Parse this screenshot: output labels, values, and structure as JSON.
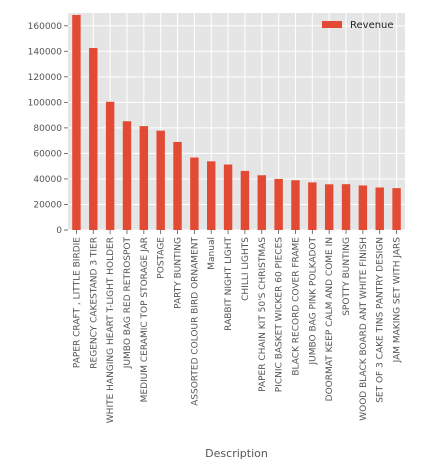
{
  "chart_data": {
    "type": "bar",
    "xlabel": "Description",
    "ylabel": "",
    "ylim": [
      0,
      170000
    ],
    "yticks": [
      0,
      20000,
      40000,
      60000,
      80000,
      100000,
      120000,
      140000,
      160000
    ],
    "ytick_labels": [
      "0",
      "20000",
      "40000",
      "60000",
      "80000",
      "100000",
      "120000",
      "140000",
      "160000"
    ],
    "grid": true,
    "legend_position": "top-right",
    "bar_color": "#e24a33",
    "background_color": "#e5e5e5",
    "categories": [
      "PAPER CRAFT , LITTLE BIRDIE",
      "REGENCY CAKESTAND 3 TIER",
      "WHITE HANGING HEART T-LIGHT HOLDER",
      "JUMBO BAG RED RETROSPOT",
      "MEDIUM CERAMIC TOP STORAGE JAR",
      "POSTAGE",
      "PARTY BUNTING",
      "ASSORTED COLOUR BIRD ORNAMENT",
      "Manual",
      "RABBIT NIGHT LIGHT",
      "CHILLI LIGHTS",
      "PAPER CHAIN KIT 50'S CHRISTMAS",
      "PICNIC BASKET WICKER 60 PIECES",
      "BLACK RECORD COVER FRAME",
      "JUMBO BAG PINK POLKADOT",
      "DOORMAT KEEP CALM AND COME IN",
      "SPOTTY BUNTING",
      "WOOD BLACK BOARD ANT WHITE FINISH",
      "SET OF 3 CAKE TINS PANTRY DESIGN",
      "JAM MAKING SET WITH JARS"
    ],
    "series": [
      {
        "name": "Revenue",
        "values": [
          168500,
          142600,
          100400,
          85200,
          81400,
          77800,
          69000,
          56800,
          53800,
          51300,
          46300,
          42900,
          40000,
          39000,
          37300,
          35800,
          35900,
          34900,
          33300,
          32800
        ]
      }
    ]
  }
}
